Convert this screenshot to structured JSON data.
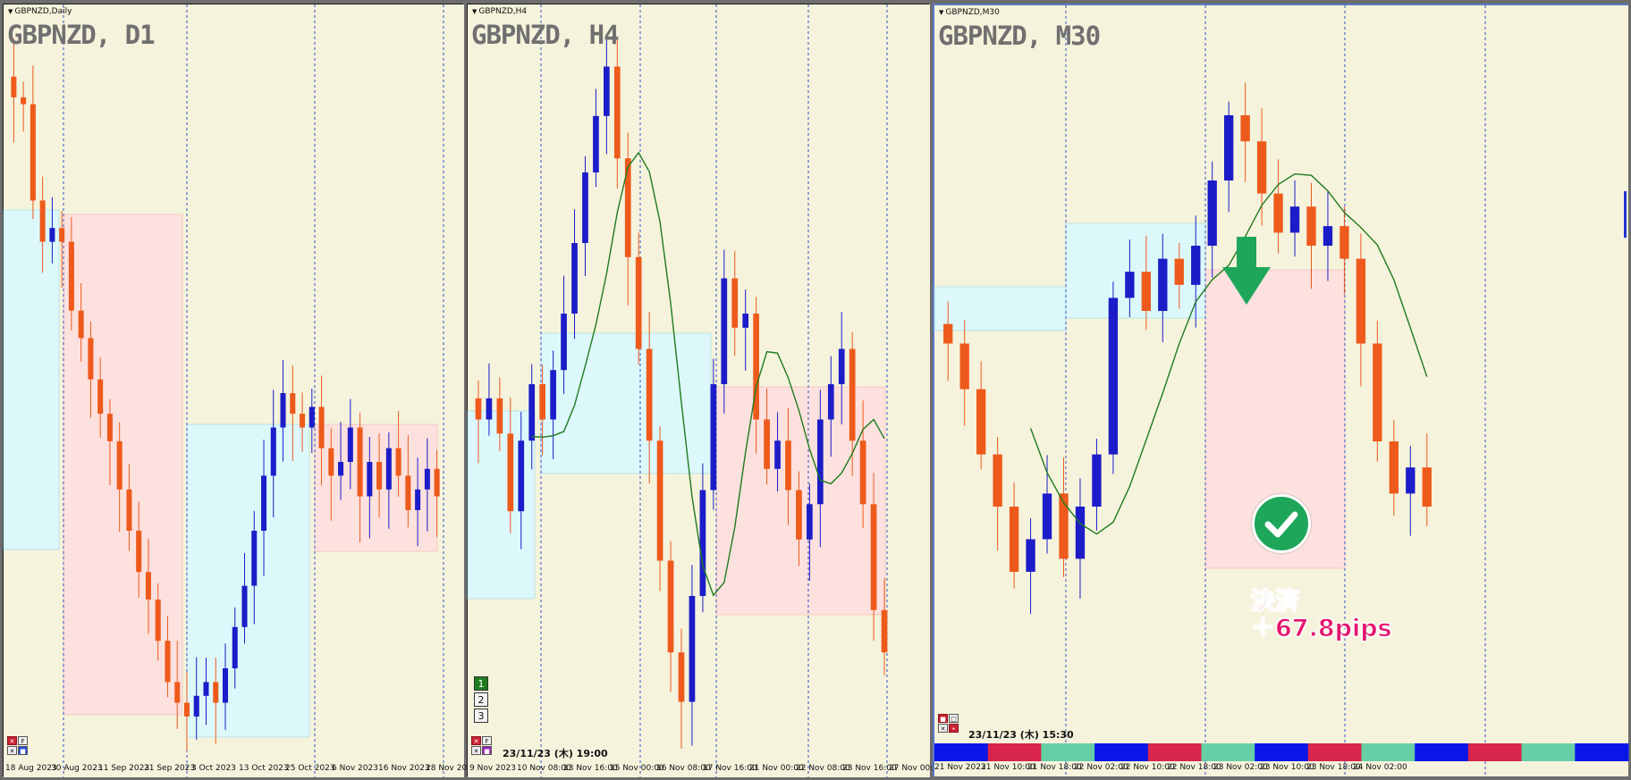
{
  "colors": {
    "bg": "#f5f3dc",
    "bull": "#1c1cc8",
    "bear": "#ee5a1c",
    "ma": "#1f7a1f",
    "zone_buy": "#dcf8fb",
    "zone_sell": "#fde1de",
    "grid": "#3050c8",
    "settle": "#e3166f",
    "check": "#1ea75a",
    "arrow": "#1ea75a"
  },
  "panels": [
    {
      "window_label": "GBPNZD,Daily",
      "title": "GBPNZD, D1",
      "x_labels": [
        "18 Aug 2023",
        "30 Aug 2023",
        "11 Sep 2023",
        "21 Sep 2023",
        "3 Oct 2023",
        "13 Oct 2023",
        "25 Oct 2023",
        "6 Nov 2023",
        "16 Nov 2023",
        "28 Nov 2023"
      ],
      "mini_buttons": [
        "F",
        "■"
      ]
    },
    {
      "window_label": "GBPNZD,H4",
      "title": "GBPNZD, H4",
      "x_labels": [
        "9 Nov 2023",
        "10 Nov 08:00",
        "13 Nov 16:00",
        "15 Nov 00:00",
        "16 Nov 08:00",
        "17 Nov 16:00",
        "21 Nov 00:00",
        "22 Nov 08:00",
        "23 Nov 16:00",
        "27 Nov 00:00"
      ],
      "datetime": "23/11/23 (木) 19:00",
      "num_buttons": [
        "1",
        "2",
        "3"
      ],
      "mini_buttons": [
        "F",
        "■"
      ]
    },
    {
      "window_label": "GBPNZD,M30",
      "title": "GBPNZD, M30",
      "x_labels": [
        "21 Nov 2023",
        "21 Nov 10:00",
        "21 Nov 18:00",
        "22 Nov 02:00",
        "22 Nov 10:00",
        "22 Nov 18:00",
        "23 Nov 02:00",
        "23 Nov 10:00",
        "23 Nov 18:00",
        "24 Nov 02:00"
      ],
      "datetime": "23/11/23 (木) 15:30",
      "settle_label": "決済",
      "settle_pips": "＋67.8pips",
      "mini_buttons": [
        "■",
        "□"
      ]
    }
  ],
  "chart_data": [
    {
      "type": "candlestick",
      "symbol": "GBPNZD",
      "timeframe": "D1",
      "x": [
        "18 Aug 2023",
        "30 Aug 2023",
        "11 Sep 2023",
        "21 Sep 2023",
        "3 Oct 2023",
        "13 Oct 2023",
        "25 Oct 2023",
        "6 Nov 2023",
        "16 Nov 2023",
        "28 Nov 2023"
      ],
      "close_norm": [
        0.93,
        0.92,
        0.78,
        0.72,
        0.74,
        0.72,
        0.62,
        0.58,
        0.52,
        0.47,
        0.43,
        0.36,
        0.3,
        0.24,
        0.2,
        0.14,
        0.08,
        0.05,
        0.03,
        0.06,
        0.08,
        0.05,
        0.1,
        0.16,
        0.22,
        0.3,
        0.38,
        0.45,
        0.5,
        0.47,
        0.45,
        0.48,
        0.42,
        0.38,
        0.4,
        0.45,
        0.35,
        0.4,
        0.36,
        0.42,
        0.38,
        0.33,
        0.36,
        0.39,
        0.35
      ],
      "trend": "down then range"
    },
    {
      "type": "candlestick",
      "symbol": "GBPNZD",
      "timeframe": "H4",
      "x": [
        "9 Nov 2023",
        "10 Nov 08:00",
        "13 Nov 16:00",
        "15 Nov 00:00",
        "16 Nov 08:00",
        "17 Nov 16:00",
        "21 Nov 00:00",
        "22 Nov 08:00",
        "23 Nov 16:00",
        "27 Nov 00:00"
      ],
      "close_norm": [
        0.45,
        0.48,
        0.43,
        0.32,
        0.42,
        0.5,
        0.45,
        0.52,
        0.6,
        0.7,
        0.8,
        0.88,
        0.95,
        0.82,
        0.68,
        0.55,
        0.42,
        0.25,
        0.12,
        0.05,
        0.2,
        0.35,
        0.5,
        0.65,
        0.58,
        0.6,
        0.45,
        0.38,
        0.42,
        0.35,
        0.28,
        0.33,
        0.45,
        0.5,
        0.55,
        0.42,
        0.33,
        0.18,
        0.12
      ],
      "moving_average": "green line"
    },
    {
      "type": "candlestick",
      "symbol": "GBPNZD",
      "timeframe": "M30",
      "x": [
        "21 Nov 2023",
        "21 Nov 10:00",
        "21 Nov 18:00",
        "22 Nov 02:00",
        "22 Nov 10:00",
        "22 Nov 18:00",
        "23 Nov 02:00",
        "23 Nov 10:00",
        "23 Nov 18:00",
        "24 Nov 02:00"
      ],
      "close_norm": [
        0.55,
        0.48,
        0.38,
        0.3,
        0.2,
        0.25,
        0.32,
        0.22,
        0.3,
        0.38,
        0.62,
        0.66,
        0.6,
        0.68,
        0.64,
        0.7,
        0.8,
        0.9,
        0.86,
        0.78,
        0.72,
        0.76,
        0.7,
        0.73,
        0.68,
        0.55,
        0.4,
        0.32,
        0.36,
        0.3
      ],
      "moving_average": "green line",
      "annotation": "決済 ＋67.8pips"
    }
  ]
}
